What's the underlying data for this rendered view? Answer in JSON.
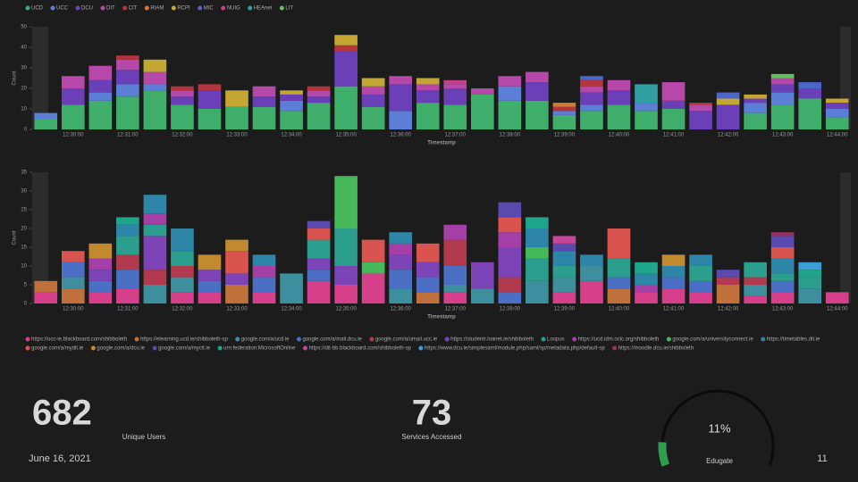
{
  "chart_data": [
    {
      "type": "bar",
      "stacked": true,
      "ylabel": "Count",
      "xlabel": "Timestamp",
      "categories": [
        null,
        "12:30:00",
        null,
        "12:31:00",
        null,
        "12:32:00",
        null,
        "12:33:00",
        null,
        "12:34:00",
        null,
        "12:35:00",
        null,
        "12:36:00",
        null,
        "12:37:00",
        null,
        "12:38:00",
        null,
        "12:39:00",
        null,
        "12:40:00",
        null,
        "12:41:00",
        null,
        "12:42:00",
        null,
        "12:43:00",
        null,
        "12:44:00"
      ],
      "ylim": [
        0,
        50
      ],
      "yticks": [
        0,
        10,
        20,
        30,
        40,
        50
      ],
      "series": [
        {
          "name": "UCD",
          "color": "#3fae6a",
          "values": [
            5,
            12,
            14,
            16,
            19,
            12,
            10,
            11,
            11,
            9,
            13,
            21,
            11,
            0,
            13,
            12,
            17,
            14,
            14,
            7,
            9,
            12,
            9,
            10,
            0,
            0,
            8,
            12,
            15,
            6
          ]
        },
        {
          "name": "UCC",
          "color": "#5b7fd6",
          "values": [
            3,
            0,
            4,
            6,
            3,
            0,
            0,
            0,
            0,
            5,
            0,
            0,
            0,
            9,
            0,
            0,
            0,
            7,
            0,
            2,
            3,
            0,
            4,
            0,
            0,
            0,
            5,
            6,
            0,
            4
          ]
        },
        {
          "name": "DCU",
          "color": "#6a3fb8",
          "values": [
            0,
            8,
            6,
            7,
            0,
            4,
            9,
            0,
            5,
            3,
            3,
            17,
            6,
            13,
            6,
            8,
            0,
            0,
            9,
            0,
            6,
            7,
            0,
            4,
            9,
            12,
            2,
            4,
            5,
            3
          ]
        },
        {
          "name": "DIT",
          "color": "#b548a8",
          "values": [
            0,
            6,
            7,
            5,
            6,
            3,
            0,
            0,
            5,
            0,
            3,
            0,
            4,
            4,
            3,
            2,
            3,
            5,
            5,
            0,
            3,
            5,
            0,
            9,
            3,
            0,
            0,
            3,
            0,
            0
          ]
        },
        {
          "name": "CIT",
          "color": "#b5353f",
          "values": [
            0,
            0,
            0,
            2,
            0,
            2,
            3,
            0,
            0,
            0,
            2,
            3,
            0,
            0,
            0,
            0,
            0,
            0,
            0,
            2,
            3,
            0,
            0,
            0,
            1,
            0,
            0,
            0,
            0,
            0
          ]
        },
        {
          "name": "RIAM",
          "color": "#d07a36",
          "values": [
            0,
            0,
            0,
            0,
            0,
            0,
            0,
            0,
            0,
            0,
            0,
            0,
            0,
            0,
            0,
            0,
            0,
            0,
            0,
            2,
            0,
            0,
            0,
            0,
            0,
            0,
            0,
            0,
            0,
            0
          ]
        },
        {
          "name": "RCPI",
          "color": "#c4a732",
          "values": [
            0,
            0,
            0,
            0,
            6,
            0,
            0,
            8,
            0,
            2,
            0,
            5,
            4,
            0,
            3,
            0,
            0,
            0,
            0,
            0,
            0,
            0,
            0,
            0,
            0,
            3,
            2,
            0,
            0,
            2
          ]
        },
        {
          "name": "MIC",
          "color": "#4b66c9",
          "values": [
            0,
            0,
            0,
            0,
            0,
            0,
            0,
            0,
            0,
            0,
            0,
            0,
            0,
            0,
            0,
            0,
            0,
            0,
            0,
            0,
            2,
            0,
            0,
            0,
            0,
            3,
            0,
            0,
            3,
            0
          ]
        },
        {
          "name": "NUIG",
          "color": "#c0408a",
          "values": [
            0,
            0,
            0,
            0,
            0,
            0,
            0,
            0,
            0,
            0,
            0,
            0,
            0,
            0,
            0,
            2,
            0,
            0,
            0,
            0,
            0,
            0,
            0,
            0,
            0,
            0,
            0,
            0,
            0,
            0
          ]
        },
        {
          "name": "HEAnet",
          "color": "#2f9fa3",
          "values": [
            0,
            0,
            0,
            0,
            0,
            0,
            0,
            0,
            0,
            0,
            0,
            0,
            0,
            0,
            0,
            0,
            0,
            0,
            0,
            0,
            0,
            0,
            9,
            0,
            0,
            0,
            0,
            0,
            0,
            0
          ]
        },
        {
          "name": "LIT",
          "color": "#5fc25a",
          "values": [
            0,
            0,
            0,
            0,
            0,
            0,
            0,
            0,
            0,
            0,
            0,
            0,
            0,
            0,
            0,
            0,
            0,
            0,
            0,
            0,
            0,
            0,
            0,
            0,
            0,
            0,
            0,
            2,
            0,
            0
          ]
        }
      ]
    },
    {
      "type": "bar",
      "stacked": true,
      "ylabel": "Count",
      "xlabel": "Timestamp",
      "categories": [
        null,
        "12:30:00",
        null,
        "12:31:00",
        null,
        "12:32:00",
        null,
        "12:33:00",
        null,
        "12:34:00",
        null,
        "12:35:00",
        null,
        "12:36:00",
        null,
        "12:37:00",
        null,
        "12:38:00",
        null,
        "12:39:00",
        null,
        "12:40:00",
        null,
        "12:41:00",
        null,
        "12:42:00",
        null,
        "12:43:00",
        null,
        "12:44:00"
      ],
      "ylim": [
        0,
        35
      ],
      "yticks": [
        0,
        5,
        10,
        15,
        20,
        25,
        30,
        35
      ],
      "series": [
        {
          "name": "https://ucc-ie.blackboard.com/shibboleth",
          "color": "#d6408b",
          "values": [
            3,
            0,
            3,
            4,
            0,
            3,
            3,
            0,
            3,
            0,
            6,
            5,
            8,
            0,
            0,
            3,
            0,
            0,
            0,
            3,
            6,
            0,
            3,
            4,
            3,
            0,
            2,
            3,
            0,
            3
          ]
        },
        {
          "name": "https://elearning.ucd.ie/shibboleth-sp",
          "color": "#c0703a",
          "values": [
            3,
            4,
            0,
            0,
            0,
            0,
            0,
            5,
            0,
            0,
            0,
            0,
            0,
            0,
            3,
            0,
            0,
            0,
            0,
            0,
            0,
            4,
            0,
            0,
            0,
            5,
            0,
            0,
            0,
            0
          ]
        },
        {
          "name": "google.com/a/ucd.ie",
          "color": "#3d8f9e",
          "values": [
            0,
            3,
            0,
            0,
            5,
            4,
            0,
            0,
            0,
            8,
            0,
            0,
            0,
            4,
            0,
            2,
            4,
            0,
            6,
            4,
            4,
            0,
            0,
            0,
            0,
            0,
            3,
            0,
            4,
            0
          ]
        },
        {
          "name": "google.com/a/mail.dcu.ie",
          "color": "#4a6fc4",
          "values": [
            0,
            4,
            3,
            5,
            0,
            0,
            3,
            0,
            4,
            0,
            3,
            0,
            0,
            5,
            4,
            5,
            0,
            3,
            0,
            0,
            0,
            3,
            0,
            3,
            3,
            0,
            0,
            3,
            0,
            0
          ]
        },
        {
          "name": "google.com/a/umail.ucc.ie",
          "color": "#b23a4e",
          "values": [
            0,
            0,
            0,
            4,
            4,
            3,
            0,
            0,
            0,
            0,
            0,
            0,
            0,
            0,
            0,
            7,
            0,
            4,
            0,
            0,
            0,
            0,
            0,
            0,
            0,
            2,
            2,
            0,
            0,
            0
          ]
        },
        {
          "name": "https://studentr.loanet.ie/shibboleth",
          "color": "#7d44b8",
          "values": [
            0,
            0,
            3,
            0,
            9,
            0,
            3,
            3,
            0,
            0,
            3,
            5,
            0,
            4,
            4,
            0,
            7,
            8,
            0,
            0,
            0,
            0,
            0,
            0,
            0,
            0,
            0,
            0,
            0,
            0
          ]
        },
        {
          "name": "Loopus",
          "color": "#2b9e8d",
          "values": [
            0,
            0,
            0,
            5,
            3,
            4,
            0,
            0,
            0,
            0,
            5,
            10,
            0,
            0,
            0,
            0,
            0,
            0,
            6,
            3,
            0,
            5,
            0,
            0,
            4,
            0,
            4,
            2,
            3,
            0
          ]
        },
        {
          "name": "https://ucd.idm.oclc.org/shibboleth",
          "color": "#a43fa8",
          "values": [
            0,
            0,
            3,
            0,
            3,
            0,
            0,
            0,
            3,
            0,
            0,
            0,
            0,
            3,
            0,
            4,
            0,
            4,
            0,
            0,
            0,
            0,
            2,
            0,
            0,
            0,
            0,
            0,
            0,
            0
          ]
        },
        {
          "name": "google.com/a/universityconnect.ie",
          "color": "#46b85a",
          "values": [
            0,
            0,
            0,
            0,
            0,
            0,
            0,
            0,
            0,
            0,
            0,
            14,
            3,
            0,
            0,
            0,
            0,
            0,
            3,
            0,
            0,
            0,
            0,
            0,
            0,
            0,
            0,
            0,
            0,
            0
          ]
        },
        {
          "name": "https://timetables.dit.ie",
          "color": "#2d86a8",
          "values": [
            0,
            0,
            0,
            3,
            5,
            6,
            0,
            0,
            3,
            0,
            0,
            0,
            0,
            3,
            0,
            0,
            0,
            0,
            5,
            4,
            3,
            0,
            3,
            3,
            3,
            0,
            0,
            4,
            0,
            0
          ]
        },
        {
          "name": "google.com/a/mydit.ie",
          "color": "#d9534f",
          "values": [
            0,
            3,
            0,
            0,
            0,
            0,
            0,
            6,
            0,
            0,
            3,
            0,
            6,
            0,
            5,
            0,
            0,
            4,
            0,
            0,
            0,
            8,
            0,
            0,
            0,
            0,
            0,
            3,
            0,
            0
          ]
        },
        {
          "name": "google.com/a/dcu.ie",
          "color": "#c28a2e",
          "values": [
            0,
            0,
            4,
            0,
            0,
            0,
            4,
            3,
            0,
            0,
            0,
            0,
            0,
            0,
            0,
            0,
            0,
            0,
            0,
            0,
            0,
            0,
            0,
            3,
            0,
            0,
            0,
            0,
            0,
            0
          ]
        },
        {
          "name": "google.com/a/mycit.ie",
          "color": "#5a4ab0",
          "values": [
            0,
            0,
            0,
            0,
            0,
            0,
            0,
            0,
            0,
            0,
            2,
            0,
            0,
            0,
            0,
            0,
            0,
            4,
            0,
            2,
            0,
            0,
            0,
            0,
            0,
            2,
            0,
            3,
            0,
            0
          ]
        },
        {
          "name": "urn:federation:MicrosoftOnline",
          "color": "#1fa58a",
          "values": [
            0,
            0,
            0,
            2,
            0,
            0,
            0,
            0,
            0,
            0,
            0,
            0,
            0,
            0,
            0,
            0,
            0,
            0,
            3,
            0,
            0,
            0,
            3,
            0,
            0,
            0,
            0,
            0,
            2,
            0
          ]
        },
        {
          "name": "https://dit-bb.blackboard.com/shibboleth-sp",
          "color": "#c4479a",
          "values": [
            0,
            0,
            0,
            0,
            0,
            0,
            0,
            0,
            0,
            0,
            0,
            0,
            0,
            0,
            0,
            0,
            0,
            0,
            0,
            2,
            0,
            0,
            0,
            0,
            0,
            0,
            0,
            0,
            0,
            0
          ]
        },
        {
          "name": "https://www.dcu.ie/simplesaml/module.php/saml/sp/metadata.php/default-sp",
          "color": "#3b9ed4",
          "values": [
            0,
            0,
            0,
            0,
            0,
            0,
            0,
            0,
            0,
            0,
            0,
            0,
            0,
            0,
            0,
            0,
            0,
            0,
            0,
            0,
            0,
            0,
            0,
            0,
            0,
            0,
            0,
            0,
            2,
            0
          ]
        },
        {
          "name": "https://moodle.dcu.ie/shibboleth",
          "color": "#9b2e5a",
          "values": [
            0,
            0,
            0,
            0,
            0,
            0,
            0,
            0,
            0,
            0,
            0,
            0,
            0,
            0,
            0,
            0,
            0,
            0,
            0,
            0,
            0,
            0,
            0,
            0,
            0,
            0,
            0,
            1,
            0,
            0
          ]
        }
      ]
    }
  ],
  "metrics": [
    {
      "value": 682,
      "label": "Unique Users"
    },
    {
      "value": 73,
      "label": "Services Accessed"
    }
  ],
  "gauge": {
    "value": 11,
    "value_label": "11%",
    "label": "Edugate",
    "color": "#2f9e4f"
  },
  "footer": {
    "date": "June 16, 2021",
    "page": "11"
  }
}
